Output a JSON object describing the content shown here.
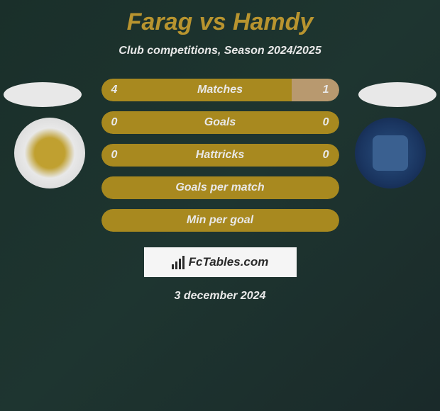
{
  "title": "Farag vs Hamdy",
  "subtitle": "Club competitions, Season 2024/2025",
  "date": "3 december 2024",
  "branding": {
    "text": "FcTables.com"
  },
  "colors": {
    "title_color": "#b8942f",
    "text_color": "#e8e8e8",
    "bar_primary": "#a8891f",
    "bar_secondary": "#b8996f",
    "box_bg": "#f5f5f5",
    "brand_text": "#2a2a2a"
  },
  "stats": [
    {
      "label": "Matches",
      "left_value": "4",
      "right_value": "1",
      "left_pct": 80,
      "right_pct": 20
    },
    {
      "label": "Goals",
      "left_value": "0",
      "right_value": "0",
      "left_pct": 100,
      "right_pct": 0
    },
    {
      "label": "Hattricks",
      "left_value": "0",
      "right_value": "0",
      "left_pct": 100,
      "right_pct": 0
    },
    {
      "label": "Goals per match",
      "left_value": "",
      "right_value": "",
      "left_pct": 100,
      "right_pct": 0
    },
    {
      "label": "Min per goal",
      "left_value": "",
      "right_value": "",
      "left_pct": 100,
      "right_pct": 0
    }
  ]
}
